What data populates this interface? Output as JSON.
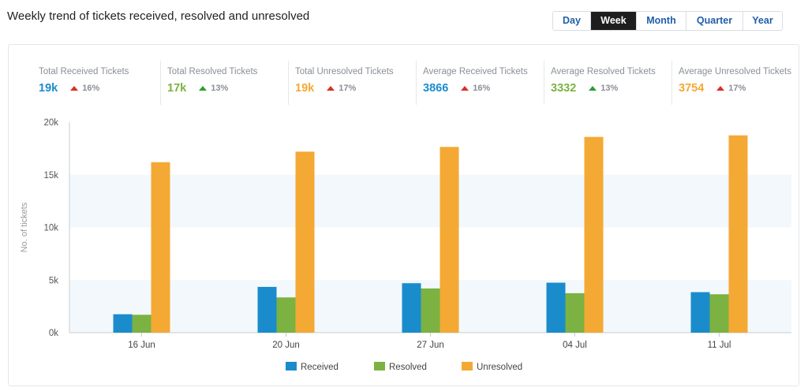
{
  "header": {
    "title": "Weekly trend of tickets received, resolved and unresolved"
  },
  "period_tabs": [
    {
      "label": "Day",
      "active": false
    },
    {
      "label": "Week",
      "active": true
    },
    {
      "label": "Month",
      "active": false
    },
    {
      "label": "Quarter",
      "active": false
    },
    {
      "label": "Year",
      "active": false
    }
  ],
  "stats": [
    {
      "label": "Total Received Tickets",
      "value": "19k",
      "change": "16%",
      "direction": "up",
      "value_color": "#1a8ccc",
      "arrow_color": "#d93025"
    },
    {
      "label": "Total Resolved Tickets",
      "value": "17k",
      "change": "13%",
      "direction": "up",
      "value_color": "#7bb241",
      "arrow_color": "#2e9e32"
    },
    {
      "label": "Total Unresolved Tickets",
      "value": "19k",
      "change": "17%",
      "direction": "up",
      "value_color": "#f4a934",
      "arrow_color": "#d93025"
    },
    {
      "label": "Average Received Tickets",
      "value": "3866",
      "change": "16%",
      "direction": "up",
      "value_color": "#1a8ccc",
      "arrow_color": "#d93025"
    },
    {
      "label": "Average Resolved Tickets",
      "value": "3332",
      "change": "13%",
      "direction": "up",
      "value_color": "#7bb241",
      "arrow_color": "#2e9e32"
    },
    {
      "label": "Average Unresolved Tickets",
      "value": "3754",
      "change": "17%",
      "direction": "up",
      "value_color": "#f4a934",
      "arrow_color": "#d93025"
    }
  ],
  "chart_data": {
    "type": "bar",
    "title": "",
    "xlabel": "",
    "ylabel": "No. of tickets",
    "ylim": [
      0,
      20000
    ],
    "yticks": [
      0,
      5000,
      10000,
      15000,
      20000
    ],
    "ytick_labels": [
      "0k",
      "5k",
      "10k",
      "15k",
      "20k"
    ],
    "categories": [
      "16 Jun",
      "20 Jun",
      "27 Jun",
      "04 Jul",
      "11 Jul"
    ],
    "series": [
      {
        "name": "Received",
        "color": "#1a8ccc",
        "values": [
          1750,
          4350,
          4700,
          4750,
          3850
        ]
      },
      {
        "name": "Resolved",
        "color": "#7bb241",
        "values": [
          1700,
          3350,
          4200,
          3750,
          3650
        ]
      },
      {
        "name": "Unresolved",
        "color": "#f4a934",
        "values": [
          16200,
          17200,
          17650,
          18600,
          18750
        ]
      }
    ],
    "grid": "alternating horizontal bands",
    "legend_position": "bottom-center"
  }
}
